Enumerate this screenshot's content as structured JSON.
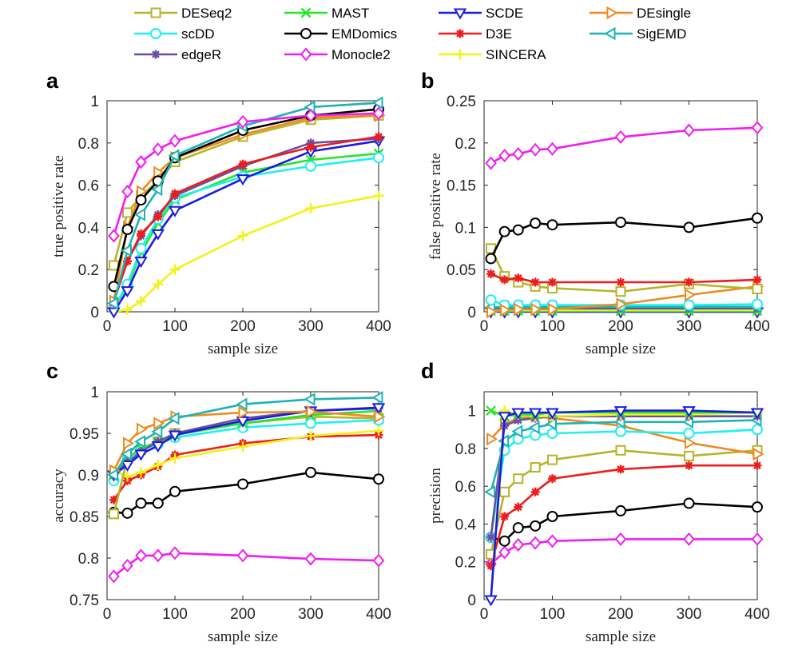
{
  "chart_data": {
    "type": "line",
    "x": [
      10,
      30,
      50,
      75,
      100,
      200,
      300,
      400
    ],
    "xlabel": "sample size",
    "xticks": [
      "0",
      "100",
      "200",
      "300",
      "400"
    ],
    "legend": [
      {
        "name": "DESeq2",
        "color": "#b5b52a",
        "marker": "square"
      },
      {
        "name": "MAST",
        "color": "#26e626",
        "marker": "x"
      },
      {
        "name": "SCDE",
        "color": "#1a1ae6",
        "marker": "triangle-down"
      },
      {
        "name": "DEsingle",
        "color": "#ef8a1e",
        "marker": "triangle-right"
      },
      {
        "name": "scDD",
        "color": "#1ff0f0",
        "marker": "circle"
      },
      {
        "name": "EMDomics",
        "color": "#000000",
        "marker": "circle"
      },
      {
        "name": "D3E",
        "color": "#ee1c1c",
        "marker": "asterisk"
      },
      {
        "name": "SigEMD",
        "color": "#1cb3b3",
        "marker": "triangle-left"
      },
      {
        "name": "edgeR",
        "color": "#6a4fa0",
        "marker": "asterisk"
      },
      {
        "name": "Monocle2",
        "color": "#f21cf2",
        "marker": "diamond"
      },
      {
        "name": "SINCERA",
        "color": "#f2f21c",
        "marker": "plus"
      }
    ],
    "panels": [
      {
        "label": "a",
        "ylabel": "true positive rate",
        "ylim": [
          0,
          1
        ],
        "yticks": [
          0,
          0.2,
          0.4,
          0.6,
          0.8,
          1
        ],
        "ytick_labels": [
          "0",
          "0.2",
          "0.4",
          "0.6",
          "0.8",
          "1"
        ],
        "series": [
          {
            "name": "SINCERA",
            "values": [
              0.0,
              0.01,
              0.05,
              0.13,
              0.2,
              0.36,
              0.49,
              0.55
            ]
          },
          {
            "name": "MAST",
            "values": [
              0.02,
              0.12,
              0.28,
              0.42,
              0.53,
              0.66,
              0.72,
              0.75
            ]
          },
          {
            "name": "scDD",
            "values": [
              0.02,
              0.13,
              0.3,
              0.44,
              0.54,
              0.64,
              0.69,
              0.73
            ]
          },
          {
            "name": "SCDE",
            "values": [
              0.0,
              0.1,
              0.24,
              0.37,
              0.48,
              0.63,
              0.76,
              0.81
            ]
          },
          {
            "name": "edgeR",
            "values": [
              0.05,
              0.24,
              0.36,
              0.46,
              0.55,
              0.69,
              0.8,
              0.82
            ]
          },
          {
            "name": "D3E",
            "values": [
              0.05,
              0.24,
              0.37,
              0.45,
              0.56,
              0.7,
              0.78,
              0.83
            ]
          },
          {
            "name": "DESeq2",
            "values": [
              0.22,
              0.47,
              0.55,
              0.62,
              0.71,
              0.83,
              0.91,
              0.93
            ]
          },
          {
            "name": "DEsingle",
            "values": [
              0.05,
              0.4,
              0.57,
              0.66,
              0.73,
              0.84,
              0.92,
              0.93
            ]
          },
          {
            "name": "EMDomics",
            "values": [
              0.12,
              0.39,
              0.53,
              0.62,
              0.73,
              0.86,
              0.93,
              0.96
            ]
          },
          {
            "name": "SigEMD",
            "values": [
              0.04,
              0.29,
              0.46,
              0.58,
              0.74,
              0.88,
              0.97,
              0.99
            ]
          },
          {
            "name": "Monocle2",
            "values": [
              0.36,
              0.57,
              0.71,
              0.77,
              0.81,
              0.9,
              0.93,
              0.94
            ]
          }
        ]
      },
      {
        "label": "b",
        "ylabel": "false positive rate",
        "ylim": [
          0,
          0.25
        ],
        "yticks": [
          0,
          0.05,
          0.1,
          0.15,
          0.2,
          0.25
        ],
        "ytick_labels": [
          "0",
          "0.05",
          "0.1",
          "0.15",
          "0.2",
          "0.25"
        ],
        "series": [
          {
            "name": "SCDE",
            "values": [
              0.0,
              0.0,
              0.0,
              0.0,
              0.0,
              0.0,
              0.0,
              0.0
            ]
          },
          {
            "name": "MAST",
            "values": [
              0.001,
              0.001,
              0.001,
              0.001,
              0.001,
              0.001,
              0.001,
              0.001
            ]
          },
          {
            "name": "SINCERA",
            "values": [
              0.002,
              0.002,
              0.002,
              0.002,
              0.002,
              0.002,
              0.002,
              0.002
            ]
          },
          {
            "name": "edgeR",
            "values": [
              0.004,
              0.004,
              0.004,
              0.004,
              0.004,
              0.004,
              0.004,
              0.004
            ]
          },
          {
            "name": "SigEMD",
            "values": [
              0.005,
              0.006,
              0.006,
              0.006,
              0.006,
              0.006,
              0.006,
              0.006
            ]
          },
          {
            "name": "scDD",
            "values": [
              0.014,
              0.008,
              0.008,
              0.008,
              0.008,
              0.008,
              0.008,
              0.009
            ]
          },
          {
            "name": "DEsingle",
            "values": [
              0.0,
              0.002,
              0.003,
              0.003,
              0.003,
              0.009,
              0.02,
              0.03
            ]
          },
          {
            "name": "DESeq2",
            "values": [
              0.075,
              0.042,
              0.035,
              0.03,
              0.028,
              0.024,
              0.033,
              0.027
            ]
          },
          {
            "name": "D3E",
            "values": [
              0.045,
              0.038,
              0.04,
              0.035,
              0.035,
              0.035,
              0.035,
              0.038
            ]
          },
          {
            "name": "EMDomics",
            "values": [
              0.063,
              0.095,
              0.097,
              0.105,
              0.103,
              0.106,
              0.1,
              0.111
            ]
          },
          {
            "name": "Monocle2",
            "values": [
              0.176,
              0.185,
              0.187,
              0.192,
              0.193,
              0.207,
              0.215,
              0.218
            ]
          }
        ]
      },
      {
        "label": "c",
        "ylabel": "accuracy",
        "ylim": [
          0.75,
          1
        ],
        "yticks": [
          0.75,
          0.8,
          0.85,
          0.9,
          0.95,
          1
        ],
        "ytick_labels": [
          "0.75",
          "0.8",
          "0.85",
          "0.9",
          "0.95",
          "1"
        ],
        "series": [
          {
            "name": "Monocle2",
            "values": [
              0.778,
              0.791,
              0.803,
              0.803,
              0.806,
              0.803,
              0.799,
              0.797
            ]
          },
          {
            "name": "EMDomics",
            "values": [
              0.855,
              0.854,
              0.866,
              0.866,
              0.88,
              0.889,
              0.903,
              0.895
            ]
          },
          {
            "name": "D3E",
            "values": [
              0.87,
              0.893,
              0.9,
              0.91,
              0.924,
              0.938,
              0.946,
              0.948
            ]
          },
          {
            "name": "SINCERA",
            "values": [
              0.905,
              0.898,
              0.903,
              0.912,
              0.92,
              0.934,
              0.947,
              0.953
            ]
          },
          {
            "name": "DESeq2",
            "values": [
              0.853,
              0.92,
              0.93,
              0.94,
              0.95,
              0.962,
              0.97,
              0.968
            ]
          },
          {
            "name": "scDD",
            "values": [
              0.893,
              0.92,
              0.93,
              0.937,
              0.945,
              0.957,
              0.962,
              0.966
            ]
          },
          {
            "name": "MAST",
            "values": [
              0.9,
              0.92,
              0.932,
              0.94,
              0.948,
              0.962,
              0.972,
              0.977
            ]
          },
          {
            "name": "edgeR",
            "values": [
              0.9,
              0.915,
              0.928,
              0.94,
              0.95,
              0.968,
              0.977,
              0.98
            ]
          },
          {
            "name": "SCDE",
            "values": [
              0.9,
              0.912,
              0.925,
              0.935,
              0.948,
              0.965,
              0.977,
              0.981
            ]
          },
          {
            "name": "DEsingle",
            "values": [
              0.905,
              0.938,
              0.955,
              0.962,
              0.97,
              0.975,
              0.976,
              0.97
            ]
          },
          {
            "name": "SigEMD",
            "values": [
              0.9,
              0.925,
              0.94,
              0.952,
              0.968,
              0.985,
              0.991,
              0.993
            ]
          }
        ]
      },
      {
        "label": "d",
        "ylabel": "precision",
        "ylim": [
          0,
          1.1
        ],
        "yticks": [
          0,
          0.2,
          0.4,
          0.6,
          0.8,
          1
        ],
        "ytick_labels": [
          "0",
          "0.2",
          "0.4",
          "0.6",
          "0.8",
          "1"
        ],
        "series": [
          {
            "name": "Monocle2",
            "values": [
              0.19,
              0.25,
              0.29,
              0.3,
              0.31,
              0.32,
              0.32,
              0.32
            ]
          },
          {
            "name": "EMDomics",
            "values": [
              0.33,
              0.31,
              0.38,
              0.39,
              0.44,
              0.47,
              0.51,
              0.49
            ]
          },
          {
            "name": "D3E",
            "values": [
              0.18,
              0.44,
              0.49,
              0.57,
              0.64,
              0.69,
              0.71,
              0.71
            ]
          },
          {
            "name": "DESeq2",
            "values": [
              0.24,
              0.57,
              0.64,
              0.7,
              0.74,
              0.79,
              0.76,
              0.79
            ]
          },
          {
            "name": "DEsingle",
            "values": [
              0.85,
              0.93,
              0.96,
              0.97,
              0.96,
              0.92,
              0.83,
              0.77
            ]
          },
          {
            "name": "scDD",
            "values": [
              0.33,
              0.79,
              0.85,
              0.87,
              0.88,
              0.89,
              0.88,
              0.9
            ]
          },
          {
            "name": "SigEMD",
            "values": [
              0.57,
              0.84,
              0.89,
              0.91,
              0.93,
              0.94,
              0.94,
              0.95
            ]
          },
          {
            "name": "edgeR",
            "values": [
              0.33,
              0.92,
              0.95,
              0.96,
              0.97,
              0.97,
              0.97,
              0.97
            ]
          },
          {
            "name": "SINCERA",
            "values": [
              0.0,
              1.0,
              0.98,
              0.97,
              0.97,
              0.98,
              0.98,
              0.99
            ]
          },
          {
            "name": "MAST",
            "values": [
              1.0,
              0.97,
              0.98,
              0.98,
              0.99,
              0.99,
              0.99,
              0.99
            ]
          },
          {
            "name": "SCDE",
            "values": [
              0.0,
              0.97,
              0.99,
              0.99,
              0.99,
              1.0,
              1.0,
              0.99
            ]
          }
        ]
      }
    ]
  }
}
